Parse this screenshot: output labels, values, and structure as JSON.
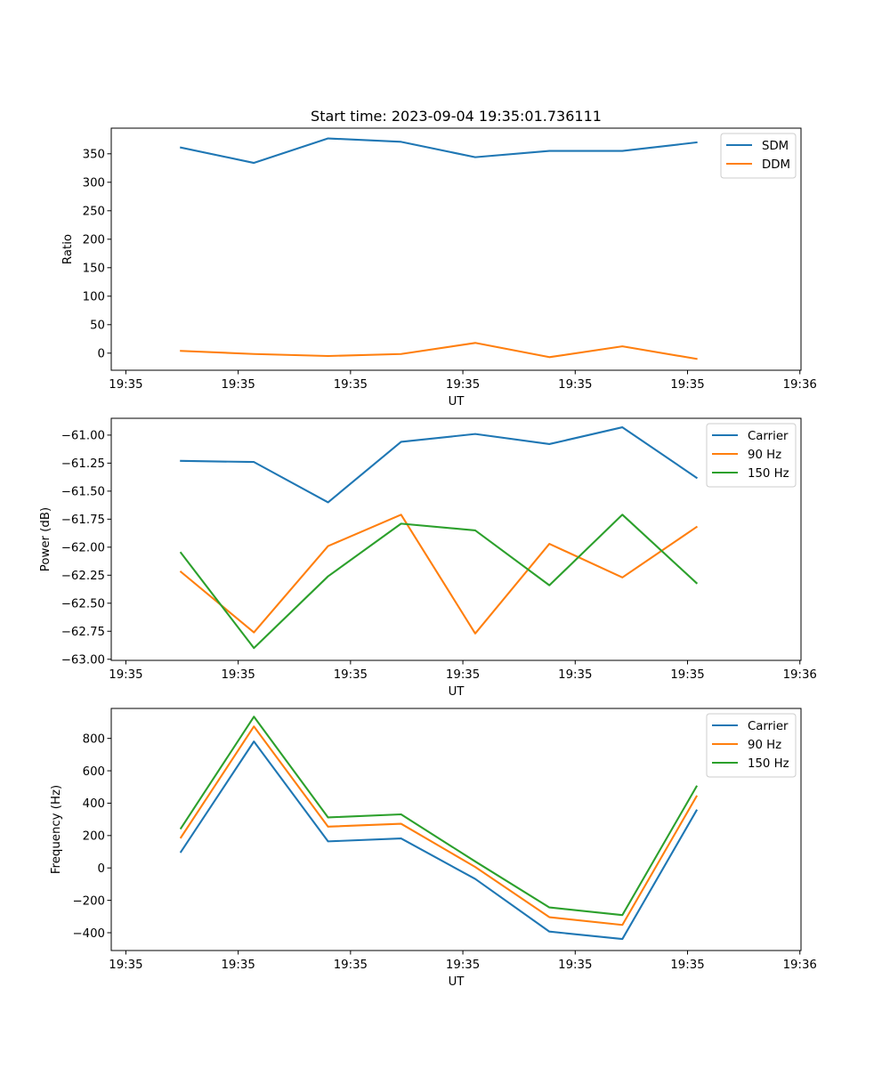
{
  "figure": {
    "title": "Start time: 2023-09-04 19:35:01.736111"
  },
  "colors": {
    "blue": "#1f77b4",
    "orange": "#ff7f0e",
    "green": "#2ca02c"
  },
  "chart_data": [
    {
      "type": "line",
      "title": "Start time: 2023-09-04 19:35:01.736111",
      "xlabel": "UT",
      "ylabel": "Ratio",
      "x_unit": "seconds after 19:35:00",
      "x": [
        4.9,
        11.4,
        18.0,
        24.5,
        31.1,
        37.7,
        44.2,
        50.8
      ],
      "xlim": [
        -1.3,
        60.1
      ],
      "xticks": [
        0,
        10,
        20,
        30,
        40,
        50,
        60
      ],
      "xtick_labels": [
        "19:35",
        "19:35",
        "19:35",
        "19:35",
        "19:35",
        "19:35",
        "19:36"
      ],
      "ylim": [
        -30,
        395
      ],
      "yticks": [
        0,
        50,
        100,
        150,
        200,
        250,
        300,
        350
      ],
      "ytick_labels": [
        "0",
        "50",
        "100",
        "150",
        "200",
        "250",
        "300",
        "350"
      ],
      "grid": false,
      "legend_position": "top-right",
      "series": [
        {
          "name": "SDM",
          "color": "#1f77b4",
          "values": [
            361,
            334,
            377,
            371,
            344,
            355,
            355,
            370
          ]
        },
        {
          "name": "DDM",
          "color": "#ff7f0e",
          "values": [
            4,
            -1.5,
            -5,
            -1.5,
            18,
            -7,
            12,
            -10
          ]
        }
      ]
    },
    {
      "type": "line",
      "title": "",
      "xlabel": "UT",
      "ylabel": "Power (dB)",
      "x_unit": "seconds after 19:35:00",
      "x": [
        4.9,
        11.4,
        18.0,
        24.5,
        31.1,
        37.7,
        44.2,
        50.8
      ],
      "xlim": [
        -1.3,
        60.1
      ],
      "xticks": [
        0,
        10,
        20,
        30,
        40,
        50,
        60
      ],
      "xtick_labels": [
        "19:35",
        "19:35",
        "19:35",
        "19:35",
        "19:35",
        "19:35",
        "19:36"
      ],
      "ylim": [
        -63.01,
        -60.85
      ],
      "yticks": [
        -63.0,
        -62.75,
        -62.5,
        -62.25,
        -62.0,
        -61.75,
        -61.5,
        -61.25,
        -61.0
      ],
      "ytick_labels": [
        "−63.00",
        "−62.75",
        "−62.50",
        "−62.25",
        "−62.00",
        "−61.75",
        "−61.50",
        "−61.25",
        "−61.00"
      ],
      "grid": false,
      "legend_position": "top-right",
      "series": [
        {
          "name": "Carrier",
          "color": "#1f77b4",
          "values": [
            -61.23,
            -61.24,
            -61.6,
            -61.06,
            -60.99,
            -61.08,
            -60.93,
            -61.38
          ]
        },
        {
          "name": "90 Hz",
          "color": "#ff7f0e",
          "values": [
            -62.22,
            -62.76,
            -61.99,
            -61.71,
            -62.77,
            -61.97,
            -62.27,
            -61.82
          ]
        },
        {
          "name": "150 Hz",
          "color": "#2ca02c",
          "values": [
            -62.05,
            -62.9,
            -62.26,
            -61.79,
            -61.85,
            -62.34,
            -61.71,
            -62.32
          ]
        }
      ]
    },
    {
      "type": "line",
      "title": "",
      "xlabel": "UT",
      "ylabel": "Frequency (Hz)",
      "x_unit": "seconds after 19:35:00",
      "x": [
        4.9,
        11.4,
        18.0,
        24.5,
        31.1,
        37.7,
        44.2,
        50.8
      ],
      "xlim": [
        -1.3,
        60.1
      ],
      "xticks": [
        0,
        10,
        20,
        30,
        40,
        50,
        60
      ],
      "xtick_labels": [
        "19:35",
        "19:35",
        "19:35",
        "19:35",
        "19:35",
        "19:35",
        "19:36"
      ],
      "ylim": [
        -510,
        985
      ],
      "yticks": [
        -400,
        -200,
        0,
        200,
        400,
        600,
        800
      ],
      "ytick_labels": [
        "−400",
        "−200",
        "0",
        "200",
        "400",
        "600",
        "800"
      ],
      "grid": false,
      "legend_position": "top-right",
      "series": [
        {
          "name": "Carrier",
          "color": "#1f77b4",
          "values": [
            99,
            781,
            164,
            182,
            -68,
            -393,
            -439,
            355
          ]
        },
        {
          "name": "90 Hz",
          "color": "#ff7f0e",
          "values": [
            188,
            874,
            255,
            273,
            6,
            -304,
            -352,
            442
          ]
        },
        {
          "name": "150 Hz",
          "color": "#2ca02c",
          "values": [
            245,
            934,
            312,
            331,
            40,
            -244,
            -291,
            503
          ]
        }
      ]
    }
  ]
}
